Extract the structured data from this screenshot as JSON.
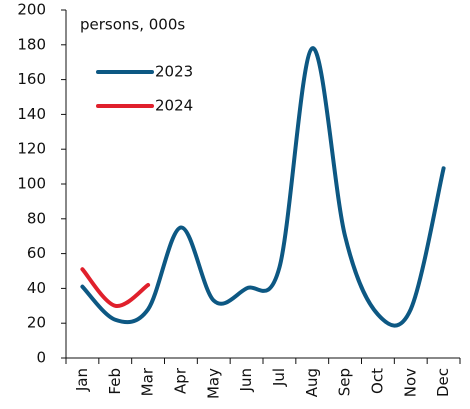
{
  "chart_data": {
    "type": "line",
    "annotation": "persons, 000s",
    "categories": [
      "Jan",
      "Feb",
      "Mar",
      "Apr",
      "May",
      "Jun",
      "Jul",
      "Aug",
      "Sep",
      "Oct",
      "Nov",
      "Dec"
    ],
    "series": [
      {
        "name": "2023",
        "color": "#0d5883",
        "values": [
          41,
          22,
          28,
          75,
          33,
          40,
          52,
          178,
          70,
          25,
          28,
          109
        ]
      },
      {
        "name": "2024",
        "color": "#e0202c",
        "values": [
          51,
          30,
          42,
          null,
          null,
          null,
          null,
          null,
          null,
          null,
          null,
          null
        ]
      }
    ],
    "ylim": [
      0,
      200
    ],
    "yticks": [
      0,
      20,
      40,
      60,
      80,
      100,
      120,
      140,
      160,
      180,
      200
    ]
  }
}
